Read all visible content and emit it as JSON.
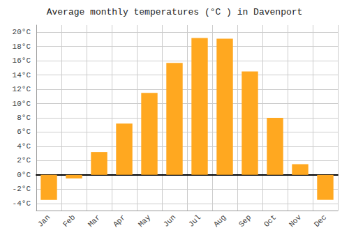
{
  "chart_data": {
    "type": "bar",
    "title": "Average monthly temperatures (°C ) in Davenport",
    "categories": [
      "Jan",
      "Feb",
      "Mar",
      "Apr",
      "May",
      "Jun",
      "Jul",
      "Aug",
      "Sep",
      "Oct",
      "Nov",
      "Dec"
    ],
    "values": [
      -3.5,
      -0.5,
      3.2,
      7.2,
      11.5,
      15.7,
      19.2,
      19.1,
      14.5,
      8.0,
      1.5,
      -3.5
    ],
    "color": "#FFA820",
    "ylim": [
      -5,
      21
    ],
    "yticks": [
      {
        "value": -4,
        "label": "-4°C"
      },
      {
        "value": -2,
        "label": "-2°C"
      },
      {
        "value": 0,
        "label": "0°C"
      },
      {
        "value": 2,
        "label": "2°C"
      },
      {
        "value": 4,
        "label": "4°C"
      },
      {
        "value": 6,
        "label": "6°C"
      },
      {
        "value": 8,
        "label": "8°C"
      },
      {
        "value": 10,
        "label": "10°C"
      },
      {
        "value": 12,
        "label": "12°C"
      },
      {
        "value": 14,
        "label": "14°C"
      },
      {
        "value": 16,
        "label": "16°C"
      },
      {
        "value": 18,
        "label": "18°C"
      },
      {
        "value": 20,
        "label": "20°C"
      }
    ],
    "grid": true
  }
}
